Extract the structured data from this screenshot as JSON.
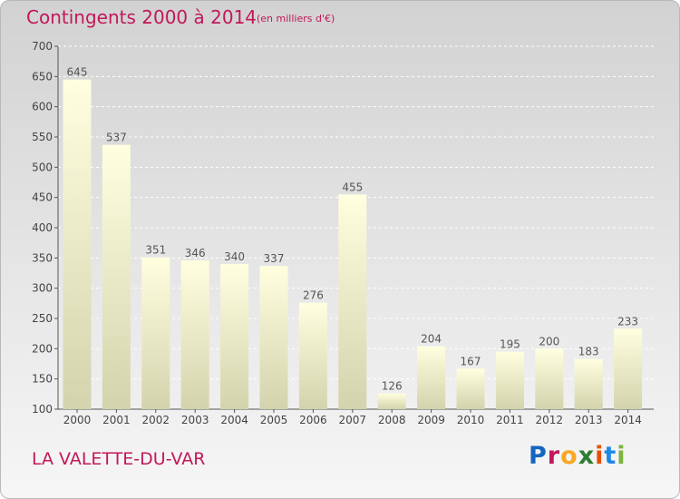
{
  "header": {
    "title": "Contingents 2000 à 2014",
    "subtitle": "(en milliers d'€)"
  },
  "footer": {
    "place": "LA VALETTE-DU-VAR",
    "logo": "Proxiti",
    "logo_colors": [
      "#1565c0",
      "#c2185b",
      "#f9a825",
      "#2e7d32",
      "#e65100",
      "#1e88e5",
      "#7cb342"
    ]
  },
  "chart_data": {
    "type": "bar",
    "categories": [
      "2000",
      "2001",
      "2002",
      "2003",
      "2004",
      "2005",
      "2006",
      "2007",
      "2008",
      "2009",
      "2010",
      "2011",
      "2012",
      "2013",
      "2014"
    ],
    "values": [
      645,
      537,
      351,
      346,
      340,
      337,
      276,
      455,
      126,
      204,
      167,
      195,
      200,
      183,
      233
    ],
    "data_labels": [
      "645",
      "537",
      "351",
      "346",
      "340",
      "337",
      "276",
      "455",
      "126",
      "204",
      "167",
      "195",
      "200",
      "183",
      "233"
    ],
    "ylim": [
      100,
      700
    ],
    "yticks": [
      100,
      150,
      200,
      250,
      300,
      350,
      400,
      450,
      500,
      550,
      600,
      650,
      700
    ],
    "grid": true,
    "bar_color_top": "#ffffe0",
    "bar_color_bottom": "#d3d3ad",
    "label_color": "#555555"
  }
}
